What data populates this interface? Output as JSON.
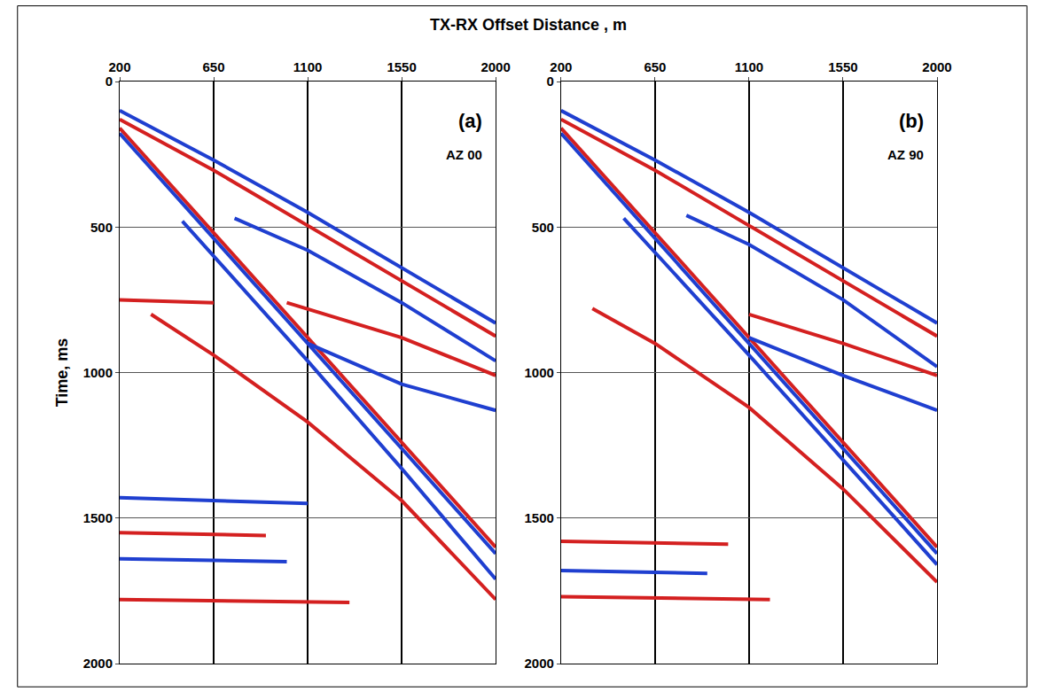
{
  "chart_data": [
    {
      "type": "line",
      "xlabel": "TX-RX Offset Distance , m",
      "ylabel": "Time, ms",
      "annotations": [
        "(a)",
        "AZ 00"
      ],
      "xlim": [
        200,
        2000
      ],
      "xticks": [
        200,
        650,
        1100,
        1550,
        2000
      ],
      "ylim": [
        0,
        2000
      ],
      "yticks": [
        0,
        500,
        1000,
        1500,
        2000
      ],
      "grid": true,
      "series": [
        {
          "color": "#1f3fd0",
          "line_style": "solid",
          "x": [
            200,
            650,
            1100,
            1550,
            2000
          ],
          "values": [
            100,
            270,
            450,
            640,
            830
          ]
        },
        {
          "color": "#d42020",
          "line_style": "solid",
          "x": [
            200,
            650,
            1100,
            1550,
            2000
          ],
          "values": [
            130,
            305,
            495,
            685,
            875
          ]
        },
        {
          "color": "#d42020",
          "line_style": "solid",
          "x": [
            200,
            650,
            1100,
            1550,
            2000
          ],
          "values": [
            160,
            520,
            880,
            1240,
            1600
          ]
        },
        {
          "color": "#1f3fd0",
          "line_style": "solid",
          "x": [
            200,
            650,
            1100,
            1550,
            2000
          ],
          "values": [
            178,
            540,
            900,
            1260,
            1622
          ]
        },
        {
          "color": "#1f3fd0",
          "line_style": "solid",
          "x": [
            500,
            1100,
            1550,
            2000
          ],
          "values": [
            480,
            960,
            1330,
            1710
          ]
        },
        {
          "color": "#d42020",
          "line_style": "solid",
          "x": [
            350,
            650,
            1100,
            1550,
            2000
          ],
          "values": [
            800,
            940,
            1170,
            1440,
            1780
          ]
        },
        {
          "color": "#1f3fd0",
          "line_style": "solid",
          "x": [
            750,
            1100,
            1550,
            2000
          ],
          "values": [
            470,
            580,
            760,
            960
          ]
        },
        {
          "color": "#d42020",
          "line_style": "solid",
          "x": [
            1000,
            1550,
            2000
          ],
          "values": [
            760,
            880,
            1010
          ]
        },
        {
          "color": "#1f3fd0",
          "line_style": "solid",
          "x": [
            1100,
            1550,
            2000
          ],
          "values": [
            900,
            1040,
            1130
          ]
        },
        {
          "color": "#d42020",
          "line_style": "solid",
          "x": [
            200,
            650
          ],
          "values": [
            750,
            760
          ]
        },
        {
          "color": "#1f3fd0",
          "line_style": "solid",
          "x": [
            200,
            1100
          ],
          "values": [
            1430,
            1450
          ]
        },
        {
          "color": "#d42020",
          "line_style": "solid",
          "x": [
            200,
            900
          ],
          "values": [
            1550,
            1560
          ]
        },
        {
          "color": "#1f3fd0",
          "line_style": "solid",
          "x": [
            200,
            1000
          ],
          "values": [
            1640,
            1650
          ]
        },
        {
          "color": "#d42020",
          "line_style": "solid",
          "x": [
            200,
            1300
          ],
          "values": [
            1780,
            1790
          ]
        }
      ]
    },
    {
      "type": "line",
      "annotations": [
        "(b)",
        "AZ 90"
      ],
      "xlim": [
        200,
        2000
      ],
      "xticks": [
        200,
        650,
        1100,
        1550,
        2000
      ],
      "ylim": [
        0,
        2000
      ],
      "yticks": [
        0,
        500,
        1000,
        1500,
        2000
      ],
      "grid": true,
      "series": [
        {
          "color": "#1f3fd0",
          "line_style": "solid",
          "x": [
            200,
            650,
            1100,
            1550,
            2000
          ],
          "values": [
            100,
            270,
            450,
            640,
            830
          ]
        },
        {
          "color": "#d42020",
          "line_style": "solid",
          "x": [
            200,
            650,
            1100,
            1550,
            2000
          ],
          "values": [
            130,
            305,
            495,
            685,
            875
          ]
        },
        {
          "color": "#d42020",
          "line_style": "solid",
          "x": [
            200,
            650,
            1100,
            1550,
            2000
          ],
          "values": [
            160,
            520,
            880,
            1240,
            1600
          ]
        },
        {
          "color": "#1f3fd0",
          "line_style": "solid",
          "x": [
            200,
            650,
            1100,
            1550,
            2000
          ],
          "values": [
            178,
            540,
            900,
            1260,
            1622
          ]
        },
        {
          "color": "#1f3fd0",
          "line_style": "solid",
          "x": [
            500,
            1100,
            1550,
            2000
          ],
          "values": [
            470,
            940,
            1300,
            1660
          ]
        },
        {
          "color": "#d42020",
          "line_style": "solid",
          "x": [
            350,
            650,
            1100,
            1550,
            2000
          ],
          "values": [
            780,
            900,
            1120,
            1400,
            1720
          ]
        },
        {
          "color": "#1f3fd0",
          "line_style": "solid",
          "x": [
            800,
            1100,
            1550,
            2000
          ],
          "values": [
            460,
            560,
            750,
            980
          ]
        },
        {
          "color": "#d42020",
          "line_style": "solid",
          "x": [
            1100,
            1550,
            2000
          ],
          "values": [
            800,
            900,
            1010
          ]
        },
        {
          "color": "#1f3fd0",
          "line_style": "solid",
          "x": [
            1100,
            1550,
            2000
          ],
          "values": [
            880,
            1010,
            1130
          ]
        },
        {
          "color": "#d42020",
          "line_style": "solid",
          "x": [
            200,
            1000
          ],
          "values": [
            1580,
            1590
          ]
        },
        {
          "color": "#1f3fd0",
          "line_style": "solid",
          "x": [
            200,
            900
          ],
          "values": [
            1680,
            1690
          ]
        },
        {
          "color": "#d42020",
          "line_style": "solid",
          "x": [
            200,
            1200
          ],
          "values": [
            1770,
            1780
          ]
        }
      ]
    }
  ]
}
